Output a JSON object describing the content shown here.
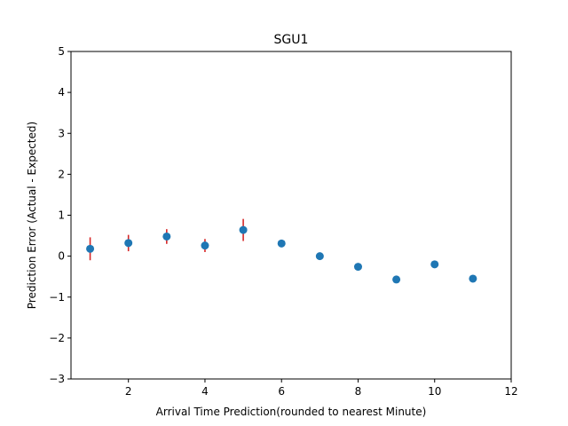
{
  "chart_data": {
    "type": "scatter",
    "title": "SGU1",
    "xlabel": "Arrival Time Prediction(rounded to nearest Minute)",
    "ylabel": "Prediction Error (Actual - Expected)",
    "xlim": [
      0.5,
      12
    ],
    "ylim": [
      -3,
      5
    ],
    "xticks": [
      2,
      4,
      6,
      8,
      10,
      12
    ],
    "yticks": [
      -3,
      -2,
      -1,
      0,
      1,
      2,
      3,
      4,
      5
    ],
    "grid": false,
    "point_color": "#1f77b4",
    "errorbar_color": "#d62728",
    "points": [
      {
        "x": 1,
        "y": 0.18,
        "err": 0.28
      },
      {
        "x": 2,
        "y": 0.32,
        "err": 0.2
      },
      {
        "x": 3,
        "y": 0.48,
        "err": 0.18
      },
      {
        "x": 4,
        "y": 0.26,
        "err": 0.16
      },
      {
        "x": 5,
        "y": 0.64,
        "err": 0.27
      },
      {
        "x": 6,
        "y": 0.31,
        "err": 0.0
      },
      {
        "x": 7,
        "y": 0.0,
        "err": 0.0
      },
      {
        "x": 8,
        "y": -0.26,
        "err": 0.05
      },
      {
        "x": 9,
        "y": -0.57,
        "err": 0.0
      },
      {
        "x": 10,
        "y": -0.2,
        "err": 0.0
      },
      {
        "x": 11,
        "y": -0.55,
        "err": 0.0
      }
    ]
  }
}
